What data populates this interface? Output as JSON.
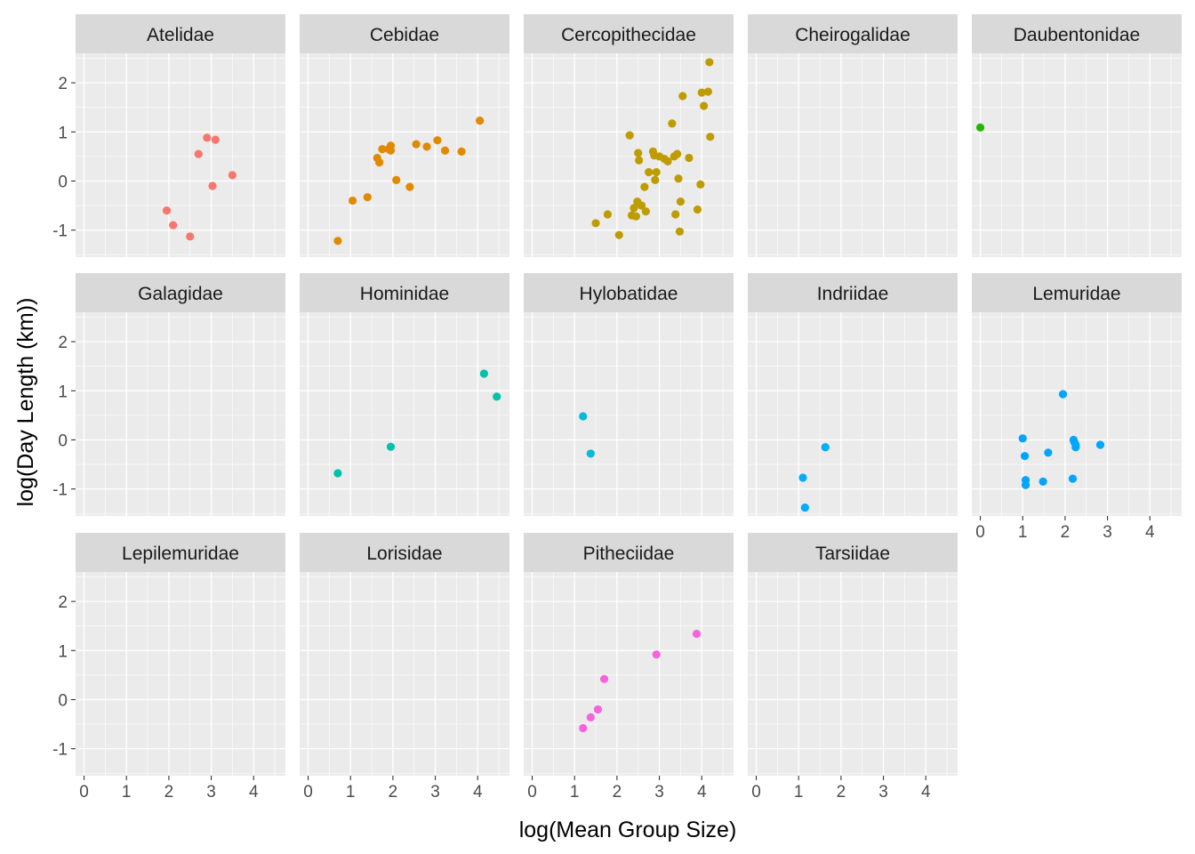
{
  "chart_data": {
    "type": "scatter",
    "xlabel": "log(Mean Group Size)",
    "ylabel": "log(Day Length (km))",
    "xlim": [
      -0.2,
      4.75
    ],
    "ylim": [
      -1.55,
      2.6
    ],
    "x_ticks": [
      0,
      1,
      2,
      3,
      4
    ],
    "y_ticks": [
      -1,
      0,
      1,
      2
    ],
    "x_tick_labels": [
      "0",
      "1",
      "2",
      "3",
      "4"
    ],
    "y_tick_labels": [
      "-1",
      "0",
      "1",
      "2"
    ],
    "grid": true,
    "facet_columns": 5,
    "panels": [
      {
        "name": "Atelidae",
        "color": "#F8766D",
        "points": [
          [
            1.95,
            -0.6
          ],
          [
            2.1,
            -0.9
          ],
          [
            2.5,
            -1.13
          ],
          [
            2.7,
            0.55
          ],
          [
            2.9,
            0.88
          ],
          [
            3.03,
            -0.1
          ],
          [
            3.1,
            0.84
          ],
          [
            3.5,
            0.12
          ]
        ]
      },
      {
        "name": "Cebidae",
        "color": "#E18A00",
        "points": [
          [
            0.7,
            -1.22
          ],
          [
            1.05,
            -0.4
          ],
          [
            1.4,
            -0.33
          ],
          [
            1.63,
            0.47
          ],
          [
            1.68,
            0.38
          ],
          [
            1.75,
            0.65
          ],
          [
            1.9,
            0.65
          ],
          [
            1.95,
            0.72
          ],
          [
            1.95,
            0.62
          ],
          [
            2.08,
            0.02
          ],
          [
            2.4,
            -0.12
          ],
          [
            2.55,
            0.75
          ],
          [
            2.8,
            0.7
          ],
          [
            3.05,
            0.83
          ],
          [
            3.23,
            0.62
          ],
          [
            3.62,
            0.6
          ],
          [
            4.05,
            1.23
          ]
        ]
      },
      {
        "name": "Cercopithecidae",
        "color": "#BE9C00",
        "points": [
          [
            1.5,
            -0.86
          ],
          [
            1.78,
            -0.68
          ],
          [
            2.05,
            -1.1
          ],
          [
            2.3,
            0.93
          ],
          [
            2.35,
            -0.7
          ],
          [
            2.4,
            -0.55
          ],
          [
            2.45,
            -0.72
          ],
          [
            2.48,
            -0.42
          ],
          [
            2.5,
            0.57
          ],
          [
            2.52,
            0.42
          ],
          [
            2.58,
            -0.5
          ],
          [
            2.65,
            -0.12
          ],
          [
            2.68,
            -0.62
          ],
          [
            2.75,
            0.18
          ],
          [
            2.85,
            0.6
          ],
          [
            2.88,
            0.52
          ],
          [
            2.9,
            0.02
          ],
          [
            2.93,
            0.18
          ],
          [
            3.0,
            0.5
          ],
          [
            3.12,
            0.45
          ],
          [
            3.2,
            0.4
          ],
          [
            3.3,
            1.17
          ],
          [
            3.35,
            0.5
          ],
          [
            3.38,
            -0.68
          ],
          [
            3.42,
            0.55
          ],
          [
            3.45,
            0.05
          ],
          [
            3.48,
            -1.03
          ],
          [
            3.5,
            -0.42
          ],
          [
            3.55,
            1.73
          ],
          [
            3.7,
            0.47
          ],
          [
            3.9,
            -0.58
          ],
          [
            3.97,
            -0.07
          ],
          [
            4.0,
            1.8
          ],
          [
            4.05,
            1.53
          ],
          [
            4.15,
            1.82
          ],
          [
            4.18,
            2.42
          ],
          [
            4.2,
            0.9
          ]
        ]
      },
      {
        "name": "Cheirogalidae",
        "color": "#8CAB00",
        "points": []
      },
      {
        "name": "Daubentonidae",
        "color": "#24B700",
        "points": [
          [
            0.0,
            1.09
          ]
        ]
      },
      {
        "name": "Galagidae",
        "color": "#00BE70",
        "points": []
      },
      {
        "name": "Hominidae",
        "color": "#00C1AB",
        "points": [
          [
            0.7,
            -0.68
          ],
          [
            1.95,
            -0.14
          ],
          [
            4.15,
            1.35
          ],
          [
            4.45,
            0.88
          ]
        ]
      },
      {
        "name": "Hylobatidae",
        "color": "#00BBDA",
        "points": [
          [
            1.2,
            0.48
          ],
          [
            1.38,
            -0.28
          ]
        ]
      },
      {
        "name": "Indriidae",
        "color": "#00ACFC",
        "points": [
          [
            1.1,
            -0.77
          ],
          [
            1.15,
            -1.38
          ],
          [
            1.63,
            -0.15
          ]
        ]
      },
      {
        "name": "Lemuridae",
        "color": "#00A5FF",
        "points": [
          [
            1.0,
            0.03
          ],
          [
            1.05,
            -0.33
          ],
          [
            1.07,
            -0.82
          ],
          [
            1.07,
            -0.92
          ],
          [
            1.48,
            -0.85
          ],
          [
            1.6,
            -0.26
          ],
          [
            1.95,
            0.93
          ],
          [
            2.18,
            -0.79
          ],
          [
            2.2,
            0.0
          ],
          [
            2.22,
            -0.05
          ],
          [
            2.25,
            -0.15
          ],
          [
            2.25,
            -0.1
          ],
          [
            2.83,
            -0.1
          ]
        ]
      },
      {
        "name": "Lepilemuridae",
        "color": "#8B93FF",
        "points": []
      },
      {
        "name": "Lorisidae",
        "color": "#D575FE",
        "points": []
      },
      {
        "name": "Pitheciidae",
        "color": "#F962DD",
        "points": [
          [
            1.2,
            -0.58
          ],
          [
            1.38,
            -0.36
          ],
          [
            1.55,
            -0.2
          ],
          [
            1.7,
            0.42
          ],
          [
            2.93,
            0.92
          ],
          [
            3.88,
            1.34
          ]
        ]
      },
      {
        "name": "Tarsiidae",
        "color": "#FF65AC",
        "points": []
      }
    ]
  }
}
